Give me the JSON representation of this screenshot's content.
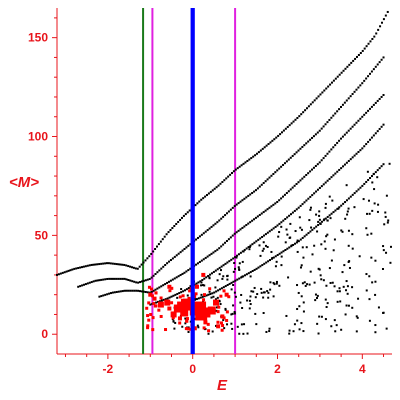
{
  "chart_data": {
    "type": "scatter",
    "title": "",
    "xlabel": "E",
    "ylabel": "<M>",
    "xlim": [
      -3.2,
      4.7
    ],
    "ylim": [
      -10,
      165
    ],
    "x_ticks": [
      "-2",
      "0",
      "2",
      "4"
    ],
    "x_tick_values": [
      -2,
      0,
      2,
      4
    ],
    "y_ticks": [
      "0",
      "50",
      "100",
      "150"
    ],
    "y_tick_values": [
      0,
      50,
      100,
      150
    ],
    "grid": false,
    "colors": {
      "axis": "#e8141b",
      "states": "#000000",
      "highlight": "#ff0000",
      "green_line": "#1a7a1a",
      "magenta_line": "#e020e0",
      "blue_line": "#0000ff"
    },
    "vertical_lines": [
      {
        "x": -1.17,
        "color": "green"
      },
      {
        "x": -0.95,
        "color": "magenta"
      },
      {
        "x": 0.0,
        "color": "blue"
      },
      {
        "x": 1.0,
        "color": "magenta"
      }
    ],
    "series": [
      {
        "color": "black",
        "kind": "band",
        "x": [
          -3.2,
          -2.8,
          -2.4,
          -2.0,
          -1.6,
          -1.3,
          -1.0,
          -0.6,
          -0.2,
          0.2,
          0.6,
          1.0,
          1.5,
          2.0,
          2.5,
          3.0,
          3.5,
          4.0,
          4.3,
          4.6
        ],
        "y": [
          30,
          33,
          35,
          36,
          35,
          33,
          40,
          51,
          60,
          68,
          75,
          83,
          91,
          100,
          110,
          121,
          132,
          143,
          151,
          163
        ]
      },
      {
        "color": "black",
        "kind": "band",
        "x": [
          -2.7,
          -2.3,
          -2.0,
          -1.6,
          -1.3,
          -1.0,
          -0.6,
          -0.2,
          0.2,
          0.6,
          1.0,
          1.5,
          2.0,
          2.5,
          3.0,
          3.5,
          4.0,
          4.5
        ],
        "y": [
          24,
          27,
          28,
          28,
          26,
          28,
          36,
          43,
          50,
          57,
          65,
          73,
          83,
          93,
          103,
          115,
          127,
          140
        ]
      },
      {
        "color": "black",
        "kind": "band",
        "x": [
          -2.2,
          -1.9,
          -1.6,
          -1.3,
          -1.0,
          -0.6,
          -0.2,
          0.2,
          0.6,
          1.0,
          1.5,
          2.0,
          2.5,
          3.0,
          3.5,
          4.0,
          4.5
        ],
        "y": [
          19,
          21,
          22,
          22,
          21,
          26,
          31,
          37,
          43,
          51,
          59,
          67,
          77,
          87,
          99,
          110,
          121
        ]
      },
      {
        "color": "black",
        "kind": "band",
        "x": [
          -1.0,
          -0.6,
          -0.2,
          0.2,
          0.6,
          1.0,
          1.5,
          2.0,
          2.5,
          3.0,
          3.5,
          4.0,
          4.5
        ],
        "y": [
          15,
          18,
          22,
          27,
          33,
          39,
          47,
          55,
          64,
          74,
          84,
          94,
          106
        ]
      },
      {
        "color": "black",
        "kind": "band",
        "x": [
          -0.4,
          0.0,
          0.5,
          1.0,
          1.5,
          2.0,
          2.5,
          3.0,
          3.5,
          4.0,
          4.5
        ],
        "y": [
          14,
          17,
          21,
          27,
          33,
          40,
          47,
          56,
          65,
          75,
          86
        ]
      },
      {
        "color": "black",
        "kind": "cloud",
        "x_range": [
          -0.5,
          4.7
        ],
        "y_range": [
          0,
          90
        ]
      },
      {
        "color": "red",
        "kind": "cluster",
        "x": [
          -1.0,
          -0.9,
          -0.75,
          -0.6,
          -0.55,
          -0.45,
          -0.35,
          -0.25,
          -0.2,
          -0.1,
          0.05,
          0.15,
          0.2,
          0.3,
          0.45,
          0.55,
          0.7,
          0.8,
          0.25,
          0.1,
          -0.3,
          0.6,
          0.3,
          0.05,
          -0.55
        ],
        "y": [
          20,
          18,
          15,
          16,
          13,
          10,
          13,
          14,
          11,
          15,
          12,
          13,
          10,
          11,
          12,
          16,
          9,
          20,
          30,
          24,
          8,
          4,
          6,
          3,
          24
        ],
        "sizes": [
          2,
          2,
          3,
          3,
          2,
          3,
          4,
          5,
          4,
          6,
          5,
          7,
          6,
          5,
          4,
          3,
          2,
          2,
          2,
          2,
          2,
          2,
          2,
          2,
          2
        ]
      }
    ]
  }
}
